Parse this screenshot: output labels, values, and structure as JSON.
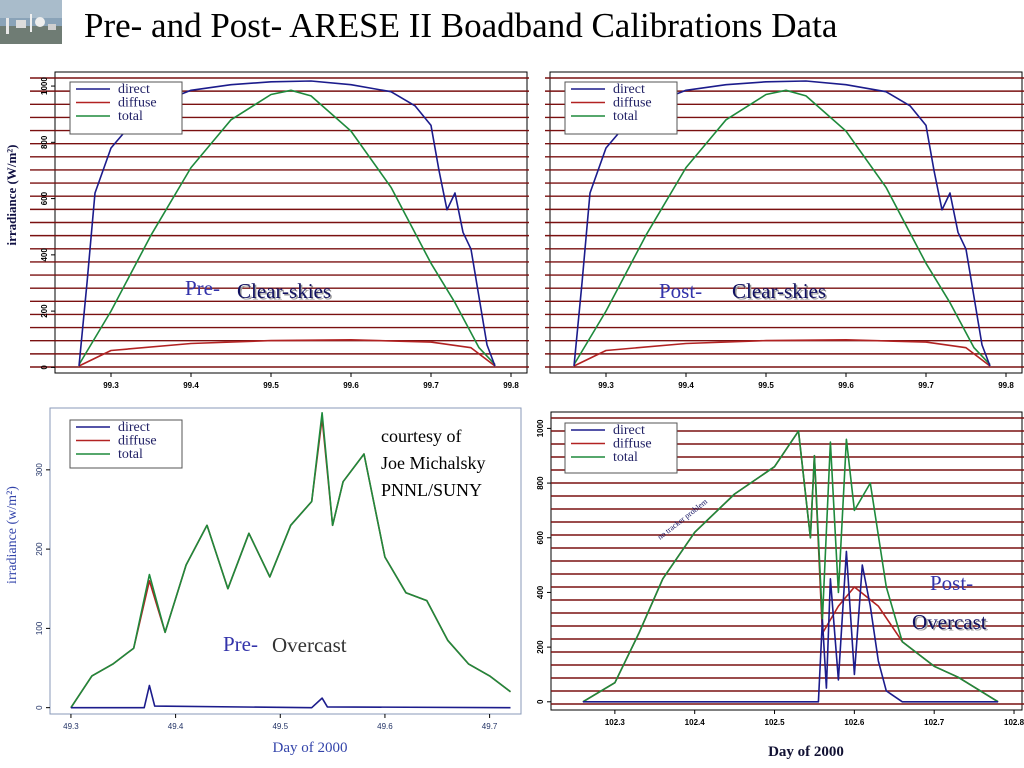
{
  "slide": {
    "title": "Pre- and Post- ARESE II Boadband Calibrations Data",
    "credit": [
      "courtesy of",
      "Joe Michalsky",
      "PNNL/SUNY"
    ]
  },
  "colors": {
    "direct": "#1c1c8c",
    "diffuse": "#b22222",
    "total": "#1e8a3c",
    "gridline": "#7a1010"
  },
  "chart_data": [
    {
      "type": "line",
      "ylabel": "irradiance (W/m²)",
      "xlabel": "",
      "xticks": [
        99.3,
        99.4,
        99.5,
        99.6,
        99.7,
        99.8
      ],
      "yticks": [
        0,
        200,
        400,
        600,
        800,
        1000
      ],
      "xlim": [
        99.23,
        99.82
      ],
      "ylim": [
        -20,
        1050
      ],
      "grid": true,
      "legend": "top-left",
      "annotations": [
        {
          "text": "Pre-",
          "color": "#3333aa"
        },
        {
          "text": "Clear-skies",
          "color": "#101060",
          "shadow": true
        }
      ],
      "series": [
        {
          "name": "direct",
          "x": [
            99.26,
            99.27,
            99.28,
            99.3,
            99.33,
            99.36,
            99.4,
            99.45,
            99.5,
            99.55,
            99.6,
            99.65,
            99.68,
            99.7,
            99.71,
            99.72,
            99.73,
            99.74,
            99.75,
            99.76,
            99.77,
            99.78
          ],
          "values": [
            5,
            300,
            620,
            780,
            880,
            940,
            985,
            1005,
            1015,
            1018,
            1005,
            980,
            930,
            860,
            700,
            560,
            620,
            480,
            420,
            250,
            80,
            5
          ]
        },
        {
          "name": "diffuse",
          "x": [
            99.26,
            99.3,
            99.4,
            99.5,
            99.6,
            99.7,
            99.75,
            99.78
          ],
          "values": [
            5,
            60,
            85,
            95,
            98,
            90,
            70,
            5
          ]
        },
        {
          "name": "total",
          "x": [
            99.26,
            99.3,
            99.35,
            99.4,
            99.45,
            99.5,
            99.525,
            99.55,
            99.6,
            99.65,
            99.7,
            99.73,
            99.76,
            99.78
          ],
          "values": [
            10,
            200,
            470,
            710,
            880,
            970,
            985,
            965,
            840,
            640,
            370,
            230,
            70,
            10
          ]
        }
      ]
    },
    {
      "type": "line",
      "ylabel": "",
      "xlabel": "",
      "xticks": [
        99.3,
        99.4,
        99.5,
        99.6,
        99.7,
        99.8
      ],
      "yticks": [],
      "xlim": [
        99.23,
        99.82
      ],
      "ylim": [
        -20,
        1050
      ],
      "grid": true,
      "legend": "top-left",
      "annotations": [
        {
          "text": "Post-",
          "color": "#3333aa"
        },
        {
          "text": "Clear-skies",
          "color": "#101060",
          "shadow": true
        }
      ],
      "series": [
        {
          "name": "direct",
          "x": [
            99.26,
            99.27,
            99.28,
            99.3,
            99.33,
            99.36,
            99.4,
            99.45,
            99.5,
            99.55,
            99.6,
            99.65,
            99.68,
            99.7,
            99.71,
            99.72,
            99.73,
            99.74,
            99.75,
            99.76,
            99.77,
            99.78
          ],
          "values": [
            5,
            300,
            620,
            780,
            880,
            940,
            985,
            1005,
            1015,
            1018,
            1005,
            980,
            930,
            860,
            700,
            560,
            620,
            480,
            420,
            250,
            80,
            5
          ]
        },
        {
          "name": "diffuse",
          "x": [
            99.26,
            99.3,
            99.4,
            99.5,
            99.6,
            99.7,
            99.75,
            99.78
          ],
          "values": [
            5,
            60,
            85,
            95,
            98,
            90,
            70,
            5
          ]
        },
        {
          "name": "total",
          "x": [
            99.26,
            99.3,
            99.35,
            99.4,
            99.45,
            99.5,
            99.525,
            99.55,
            99.6,
            99.65,
            99.7,
            99.73,
            99.76,
            99.78
          ],
          "values": [
            10,
            200,
            470,
            710,
            880,
            970,
            985,
            965,
            840,
            640,
            370,
            230,
            70,
            10
          ]
        }
      ]
    },
    {
      "type": "line",
      "ylabel": "irradiance (w/m²)",
      "xlabel": "Day of 2000",
      "xticks": [
        49.3,
        49.4,
        49.5,
        49.6,
        49.7
      ],
      "yticks": [
        0,
        100,
        200,
        300
      ],
      "xlim": [
        49.28,
        49.73
      ],
      "ylim": [
        -8,
        378
      ],
      "grid": false,
      "legend": "top-left",
      "annotations": [
        {
          "text": "Pre-",
          "color": "#3333aa"
        },
        {
          "text": "Overcast",
          "color": "#333333",
          "shadow": false
        }
      ],
      "series": [
        {
          "name": "direct",
          "x": [
            49.3,
            49.37,
            49.375,
            49.38,
            49.53,
            49.54,
            49.545,
            49.72
          ],
          "values": [
            0,
            0,
            28,
            2,
            0,
            12,
            1,
            0
          ]
        },
        {
          "name": "diffuse",
          "x": [
            49.3,
            49.32,
            49.34,
            49.36,
            49.375,
            49.39,
            49.41,
            49.43,
            49.45,
            49.47,
            49.49,
            49.51,
            49.53,
            49.54,
            49.55,
            49.56,
            49.58,
            49.6,
            49.62,
            49.64,
            49.66,
            49.68,
            49.7,
            49.72
          ],
          "values": [
            0,
            40,
            55,
            75,
            160,
            95,
            180,
            230,
            150,
            220,
            165,
            230,
            260,
            365,
            230,
            285,
            320,
            190,
            145,
            135,
            85,
            55,
            40,
            20
          ]
        },
        {
          "name": "total",
          "x": [
            49.3,
            49.32,
            49.34,
            49.36,
            49.375,
            49.39,
            49.41,
            49.43,
            49.45,
            49.47,
            49.49,
            49.51,
            49.53,
            49.54,
            49.55,
            49.56,
            49.58,
            49.6,
            49.62,
            49.64,
            49.66,
            49.68,
            49.7,
            49.72
          ],
          "values": [
            0,
            40,
            55,
            75,
            168,
            95,
            180,
            230,
            150,
            220,
            165,
            230,
            260,
            372,
            230,
            285,
            320,
            190,
            145,
            135,
            85,
            55,
            40,
            20
          ]
        }
      ]
    },
    {
      "type": "line",
      "ylabel": "",
      "xlabel": "Day of 2000",
      "xticks": [
        102.3,
        102.4,
        102.5,
        102.6,
        102.7,
        102.8
      ],
      "yticks": [
        0,
        200,
        400,
        600,
        800,
        1000
      ],
      "xlim": [
        102.22,
        102.81
      ],
      "ylim": [
        -30,
        1060
      ],
      "grid": true,
      "legend": "top-left",
      "annotations": [
        {
          "text": "Post-",
          "color": "#3333aa"
        },
        {
          "text": "Overcast",
          "color": "#101060",
          "shadow": true
        },
        {
          "text": "no tracker problem",
          "color": "#101060",
          "shadow": false
        }
      ],
      "series": [
        {
          "name": "direct",
          "x": [
            102.26,
            102.555,
            102.56,
            102.565,
            102.57,
            102.58,
            102.59,
            102.6,
            102.61,
            102.62,
            102.63,
            102.64,
            102.66,
            102.78
          ],
          "values": [
            0,
            0,
            300,
            50,
            450,
            80,
            550,
            100,
            500,
            350,
            150,
            40,
            0,
            0
          ]
        },
        {
          "name": "diffuse",
          "x": [
            102.26,
            102.3,
            102.33,
            102.36,
            102.4,
            102.45,
            102.5,
            102.53,
            102.545,
            102.55,
            102.56,
            102.58,
            102.6,
            102.63,
            102.66,
            102.7,
            102.73,
            102.78
          ],
          "values": [
            0,
            70,
            250,
            450,
            620,
            760,
            860,
            990,
            600,
            900,
            250,
            350,
            420,
            350,
            220,
            130,
            90,
            0
          ]
        },
        {
          "name": "total",
          "x": [
            102.26,
            102.3,
            102.33,
            102.36,
            102.4,
            102.45,
            102.5,
            102.53,
            102.545,
            102.55,
            102.56,
            102.57,
            102.58,
            102.59,
            102.6,
            102.62,
            102.64,
            102.66,
            102.7,
            102.73,
            102.78
          ],
          "values": [
            0,
            70,
            250,
            450,
            620,
            760,
            860,
            990,
            600,
            900,
            300,
            950,
            400,
            960,
            700,
            800,
            420,
            220,
            130,
            90,
            0
          ]
        }
      ]
    }
  ]
}
